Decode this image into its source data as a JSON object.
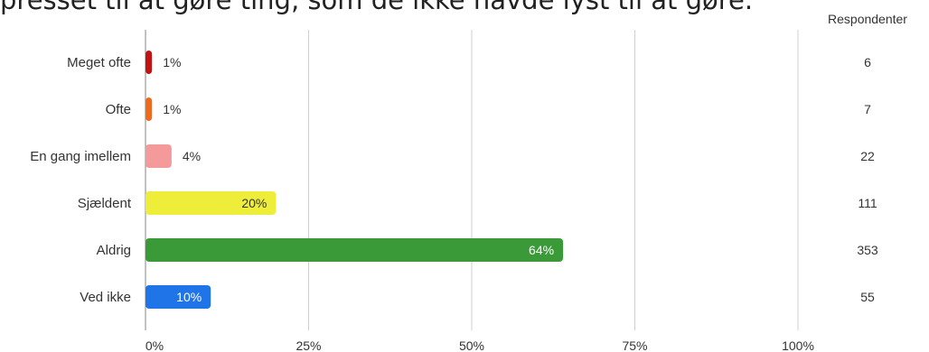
{
  "title": "presset til at gøre ting, som de ikke havde lyst til at gøre.",
  "chart_data": {
    "type": "bar",
    "orientation": "horizontal",
    "categories": [
      "Meget ofte",
      "Ofte",
      "En gang imellem",
      "Sjældent",
      "Aldrig",
      "Ved ikke"
    ],
    "values": [
      1,
      1,
      4,
      20,
      64,
      10
    ],
    "value_labels": [
      "1%",
      "1%",
      "4%",
      "20%",
      "64%",
      "10%"
    ],
    "respondents_header": "Respondenter",
    "respondents": [
      "6",
      "7",
      "22",
      "111",
      "353",
      "55"
    ],
    "colors": [
      "#c41111",
      "#f06a1a",
      "#f59a9a",
      "#eeee3a",
      "#3a9a38",
      "#1f74e8"
    ],
    "label_colors": [
      "#333333",
      "#333333",
      "#333333",
      "#333333",
      "#ffffff",
      "#ffffff"
    ],
    "xlim": [
      0,
      100
    ],
    "xticks": [
      0,
      25,
      50,
      75,
      100
    ],
    "xtick_labels": [
      "0%",
      "25%",
      "50%",
      "75%",
      "100%"
    ],
    "grid": true,
    "xlabel": "",
    "ylabel": ""
  }
}
